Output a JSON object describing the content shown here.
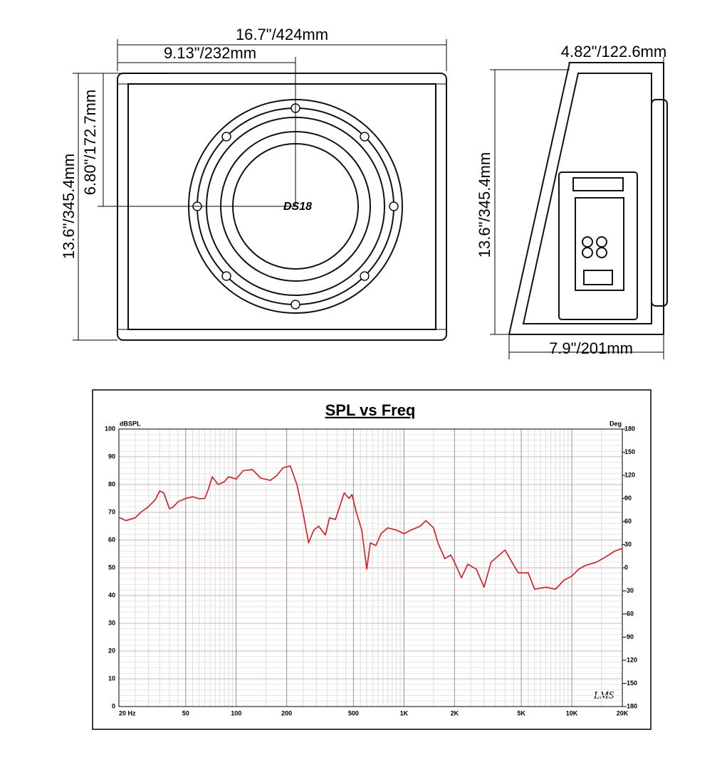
{
  "drawing": {
    "dimensions": [
      "16.7\"/424mm",
      "9.13\"/232mm",
      "13.6\"/345.4mm",
      "6.80\"/172.7mm",
      "4.82\"/122.6mm",
      "13.6\"/345.4mm",
      "7.9\"/201mm"
    ],
    "logo": "DS18"
  },
  "chart_data": {
    "type": "line",
    "title": "SPL vs Freq",
    "y_label": "dBSPL",
    "y2_label": "Deg",
    "watermark": "LMS",
    "log_x": true,
    "grid": true,
    "xlim": [
      20,
      20000
    ],
    "xticks": [
      {
        "value": 20,
        "label": "20  Hz"
      },
      50,
      100,
      200,
      500,
      {
        "value": 1000,
        "label": "1K"
      },
      {
        "value": 2000,
        "label": "2K"
      },
      {
        "value": 5000,
        "label": "5K"
      },
      {
        "value": 10000,
        "label": "10K"
      },
      {
        "value": 20000,
        "label": "20K"
      }
    ],
    "ylim": [
      0,
      100
    ],
    "yticks": [
      0,
      10,
      20,
      30,
      40,
      50,
      60,
      70,
      80,
      90,
      100
    ],
    "y2lim": [
      -180,
      180
    ],
    "y2ticks": [
      -180,
      -150,
      -120,
      -90,
      -60,
      -30,
      0,
      30,
      60,
      90,
      120,
      150,
      180
    ],
    "series": [
      {
        "color": "#e0161b",
        "x": [
          20,
          22,
          25,
          27,
          30,
          33,
          35,
          37,
          40,
          42,
          45,
          50,
          55,
          60,
          65,
          68,
          72,
          78,
          85,
          90,
          100,
          110,
          125,
          140,
          160,
          175,
          190,
          210,
          230,
          250,
          270,
          290,
          310,
          340,
          360,
          390,
          410,
          440,
          470,
          490,
          520,
          560,
          600,
          630,
          680,
          730,
          800,
          900,
          1000,
          1100,
          1250,
          1350,
          1500,
          1600,
          1750,
          1900,
          2000,
          2200,
          2400,
          2700,
          3000,
          3300,
          3700,
          4000,
          4400,
          4800,
          5500,
          6000,
          7000,
          8000,
          9000,
          10000,
          11000,
          12000,
          14000,
          16000,
          18000,
          20000
        ],
        "values": [
          68.2,
          67,
          68,
          70,
          72,
          74.6,
          77.7,
          77,
          71.3,
          71.8,
          73.8,
          75,
          75.6,
          74.9,
          75,
          78,
          82.8,
          80,
          81,
          82.8,
          82,
          85,
          85.4,
          82.3,
          81.5,
          83.3,
          86,
          86.7,
          80,
          70,
          59,
          63.6,
          65,
          61.8,
          68,
          67.4,
          71.3,
          77,
          75,
          76.4,
          70,
          63.6,
          49.5,
          59,
          58,
          62.3,
          64.4,
          63.6,
          62.3,
          63.6,
          65,
          67,
          64.4,
          58.7,
          53.3,
          54.6,
          52,
          46.4,
          51.3,
          49.5,
          43,
          52,
          54.6,
          56.4,
          52,
          48.2,
          48.2,
          42.3,
          43,
          42.3,
          45.6,
          47,
          49.5,
          50.8,
          52,
          54,
          56,
          57
        ]
      },
      {
        "color": "#e89ac8",
        "axis": "y2",
        "x": [
          20,
          20000
        ],
        "values": [
          0,
          0
        ]
      }
    ]
  }
}
